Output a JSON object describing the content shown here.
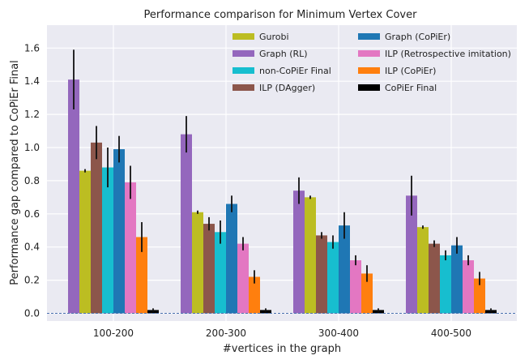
{
  "chart_data": {
    "type": "bar",
    "title": "Performance comparison for Minimum Vertex Cover",
    "xlabel": "#vertices in the graph",
    "ylabel": "Performance gap compared to CoPiEr Final",
    "ylim": [
      0.0,
      1.75
    ],
    "yticks": [
      "0.0",
      "0.2",
      "0.4",
      "0.6",
      "0.8",
      "1.0",
      "1.2",
      "1.4",
      "1.6"
    ],
    "ytick_values": [
      0.0,
      0.2,
      0.4,
      0.6,
      0.8,
      1.0,
      1.2,
      1.4,
      1.6
    ],
    "categories": [
      "100-200",
      "200-300",
      "300-400",
      "400-500"
    ],
    "reference_line": 0.0,
    "grid": true,
    "legend_position": "top-right",
    "series": [
      {
        "name": "Graph (RL)",
        "color": "#9467bd",
        "values": [
          1.41,
          1.08,
          0.74,
          0.71
        ],
        "errors": [
          0.18,
          0.11,
          0.08,
          0.12
        ]
      },
      {
        "name": "Gurobi",
        "color": "#bcbd22",
        "values": [
          0.86,
          0.61,
          0.7,
          0.52
        ],
        "errors": [
          0.01,
          0.01,
          0.01,
          0.01
        ]
      },
      {
        "name": "ILP (DAgger)",
        "color": "#8c564b",
        "values": [
          1.03,
          0.54,
          0.47,
          0.42
        ],
        "errors": [
          0.1,
          0.04,
          0.02,
          0.02
        ]
      },
      {
        "name": "non-CoPiEr Final",
        "color": "#17becf",
        "values": [
          0.88,
          0.49,
          0.43,
          0.35
        ],
        "errors": [
          0.12,
          0.07,
          0.04,
          0.03
        ]
      },
      {
        "name": "Graph (CoPiEr)",
        "color": "#1f77b4",
        "values": [
          0.99,
          0.66,
          0.53,
          0.41
        ],
        "errors": [
          0.08,
          0.05,
          0.08,
          0.05
        ]
      },
      {
        "name": "ILP (Retrospective imitation)",
        "color": "#e377c2",
        "values": [
          0.79,
          0.42,
          0.32,
          0.32
        ],
        "errors": [
          0.1,
          0.04,
          0.03,
          0.03
        ]
      },
      {
        "name": "ILP (CoPiEr)",
        "color": "#ff7f0e",
        "values": [
          0.46,
          0.22,
          0.24,
          0.21
        ],
        "errors": [
          0.09,
          0.04,
          0.05,
          0.04
        ]
      },
      {
        "name": "CoPiEr Final",
        "color": "#000000",
        "values": [
          0.02,
          0.02,
          0.02,
          0.02
        ],
        "errors": [
          0.01,
          0.01,
          0.01,
          0.01
        ]
      }
    ],
    "legend_order": [
      "Gurobi",
      "Graph (RL)",
      "non-CoPiEr Final",
      "ILP (DAgger)",
      "Graph (CoPiEr)",
      "ILP (Retrospective imitation)",
      "ILP (CoPiEr)",
      "CoPiEr Final"
    ]
  }
}
